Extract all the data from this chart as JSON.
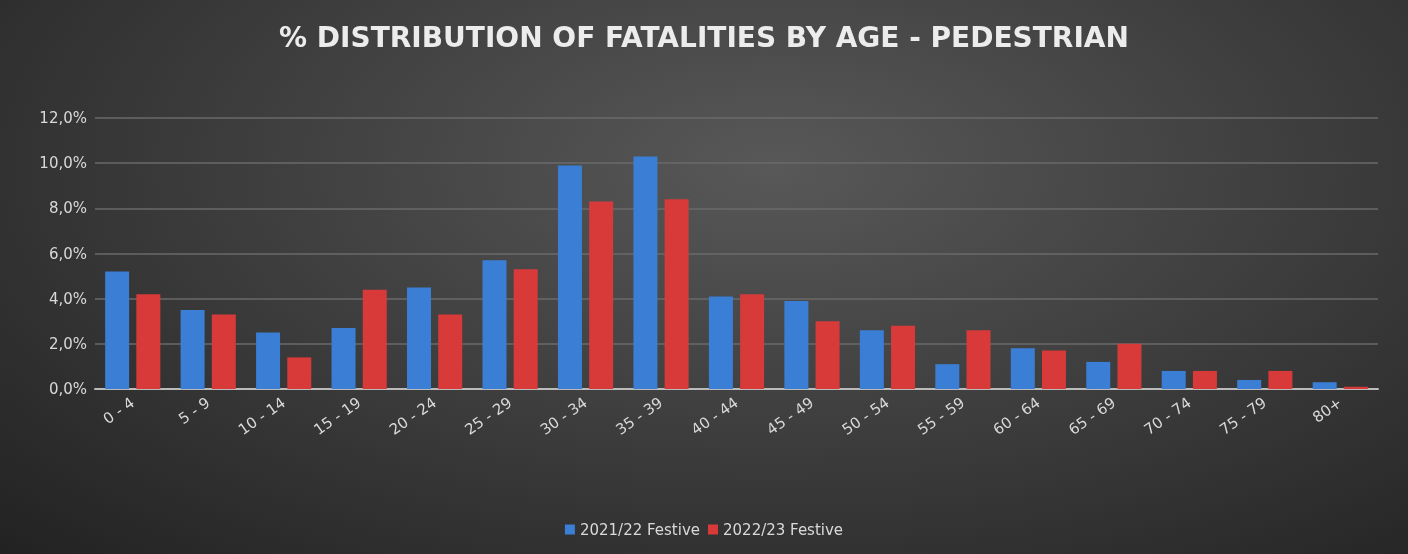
{
  "chart_data": {
    "type": "bar",
    "title": "% DISTRIBUTION OF FATALITIES BY AGE - PEDESTRIAN",
    "categories": [
      "0 - 4",
      "5 - 9",
      "10 - 14",
      "15 - 19",
      "20 - 24",
      "25 - 29",
      "30 - 34",
      "35 - 39",
      "40 - 44",
      "45 - 49",
      "50 - 54",
      "55 - 59",
      "60 - 64",
      "65 - 69",
      "70 - 74",
      "75 - 79",
      "80+"
    ],
    "series": [
      {
        "name": "2021/22 Festive",
        "color": "#3a7fd5",
        "values": [
          5.2,
          3.5,
          2.5,
          2.7,
          4.5,
          5.7,
          9.9,
          10.3,
          4.1,
          3.9,
          2.6,
          1.1,
          1.8,
          1.2,
          0.8,
          0.4,
          0.3
        ]
      },
      {
        "name": "2022/23 Festive",
        "color": "#d83a3a",
        "values": [
          4.2,
          3.3,
          1.4,
          4.4,
          3.3,
          5.3,
          8.3,
          8.4,
          4.2,
          3.0,
          2.8,
          2.6,
          1.7,
          2.0,
          0.8,
          0.8,
          0.1
        ]
      }
    ],
    "ylim": [
      0,
      12
    ],
    "yticks": [
      {
        "value": 0,
        "label": "0,0%"
      },
      {
        "value": 2,
        "label": "2,0%"
      },
      {
        "value": 4,
        "label": "4,0%"
      },
      {
        "value": 6,
        "label": "6,0%"
      },
      {
        "value": 8,
        "label": "8,0%"
      },
      {
        "value": 10,
        "label": "10,0%"
      },
      {
        "value": 12,
        "label": "12,0%"
      }
    ],
    "grid": "y",
    "legend": "bottom"
  }
}
